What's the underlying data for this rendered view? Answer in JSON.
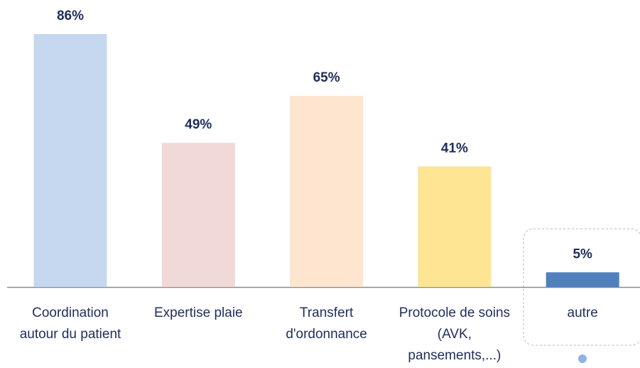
{
  "chart_data": {
    "type": "bar",
    "categories": [
      "Coordination autour du patient",
      "Expertise plaie",
      "Transfert d'ordonnance",
      "Protocole de soins (AVK, pansements,...)",
      "autre"
    ],
    "values": [
      86,
      49,
      65,
      41,
      5
    ],
    "value_labels": [
      "86%",
      "49%",
      "65%",
      "41%",
      "5%"
    ],
    "colors": [
      "#c5d8f0",
      "#f1d9d8",
      "#fde5d0",
      "#fde594",
      "#4f81bd"
    ]
  }
}
